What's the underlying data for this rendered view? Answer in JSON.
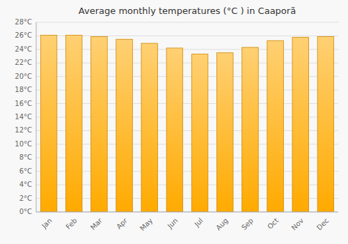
{
  "chart_data": {
    "type": "bar",
    "title": "Average monthly temperatures (°C ) in Caaporã",
    "categories": [
      "Jan",
      "Feb",
      "Mar",
      "Apr",
      "May",
      "Jun",
      "Jul",
      "Aug",
      "Sep",
      "Oct",
      "Nov",
      "Dec"
    ],
    "values": [
      26.1,
      26.1,
      25.9,
      25.5,
      24.9,
      24.2,
      23.3,
      23.5,
      24.3,
      25.3,
      25.8,
      25.9
    ],
    "color": "#FFAA00",
    "ylim": [
      0,
      28
    ],
    "yticks": [
      {
        "value": 0,
        "label": "0°C"
      },
      {
        "value": 2,
        "label": "2°C"
      },
      {
        "value": 4,
        "label": "4°C"
      },
      {
        "value": 6,
        "label": "6°C"
      },
      {
        "value": 8,
        "label": "8°C"
      },
      {
        "value": 10,
        "label": "10°C"
      },
      {
        "value": 12,
        "label": "12°C"
      },
      {
        "value": 14,
        "label": "14°C"
      },
      {
        "value": 16,
        "label": "16°C"
      },
      {
        "value": 18,
        "label": "18°C"
      },
      {
        "value": 20,
        "label": "20°C"
      },
      {
        "value": 22,
        "label": "22°C"
      },
      {
        "value": 24,
        "label": "24°C"
      },
      {
        "value": 26,
        "label": "26°C"
      },
      {
        "value": 28,
        "label": "28°C"
      }
    ],
    "grid": true
  }
}
